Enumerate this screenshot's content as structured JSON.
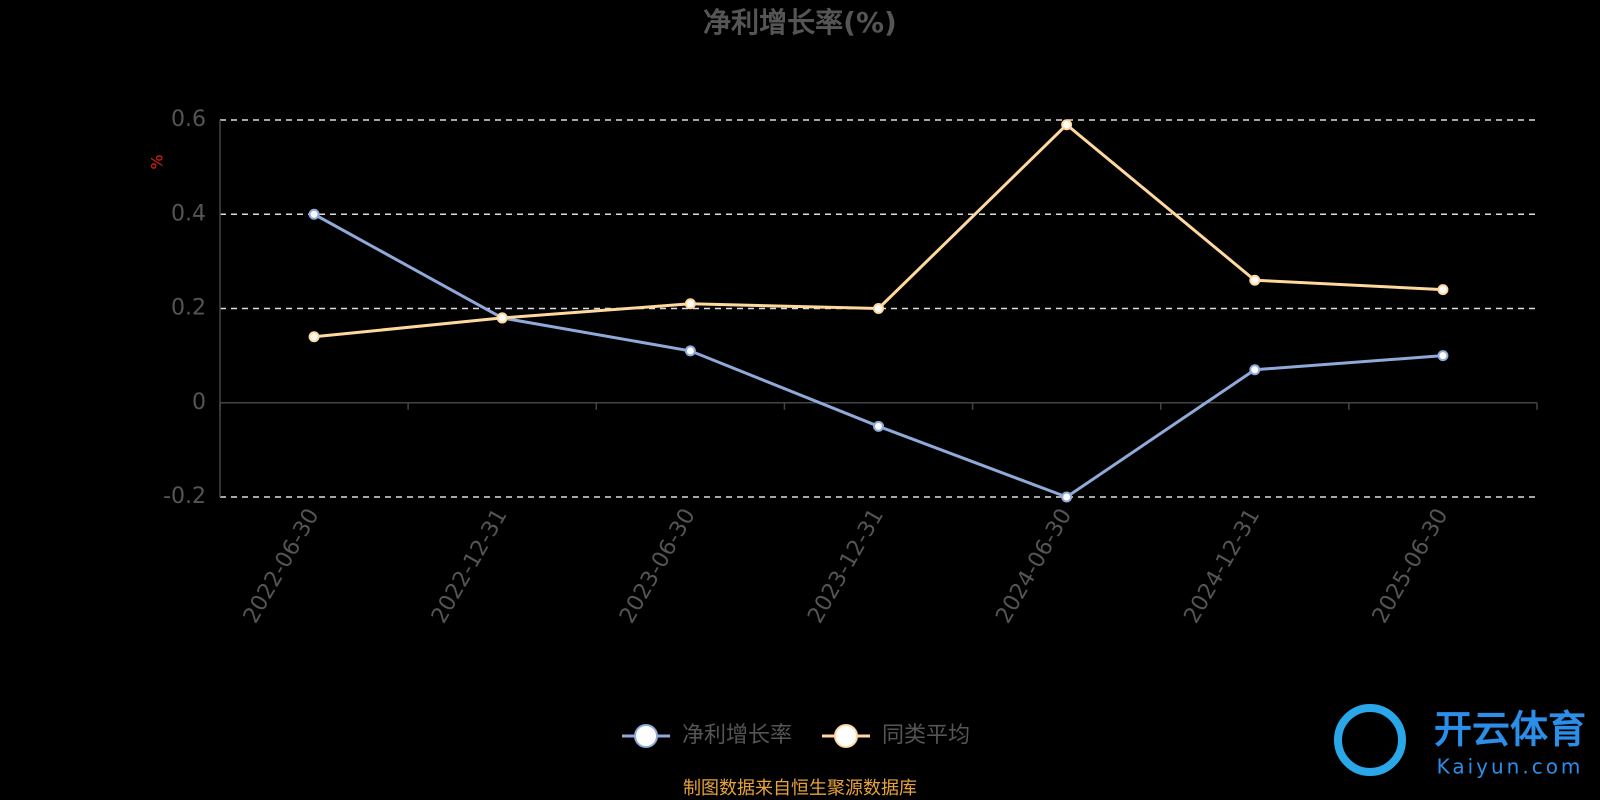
{
  "chart_data": {
    "type": "line",
    "title": "净利增长率(%)",
    "y_label": "%",
    "categories": [
      "2022-06-30",
      "2022-12-31",
      "2023-06-30",
      "2023-12-31",
      "2024-06-30",
      "2024-12-31",
      "2025-06-30"
    ],
    "series": [
      {
        "name": "净利增长率",
        "color": "#8fa9d9",
        "values": [
          0.4,
          0.18,
          0.11,
          -0.05,
          -0.2,
          0.07,
          0.1
        ]
      },
      {
        "name": "同类平均",
        "color": "#ffd89e",
        "values": [
          0.14,
          0.18,
          0.21,
          0.2,
          0.59,
          0.26,
          0.24
        ]
      }
    ],
    "ylim": [
      -0.2,
      0.6
    ],
    "yticks": [
      -0.2,
      0,
      0.2,
      0.4,
      0.6
    ],
    "grid": true,
    "source": "制图数据来自恒生聚源数据库",
    "watermark": {
      "name": "开云体育",
      "url": "Kaiyun.com"
    }
  }
}
